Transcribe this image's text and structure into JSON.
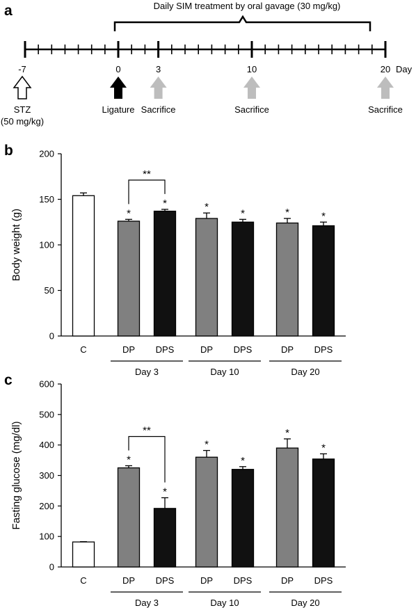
{
  "panel_a": {
    "label": "a",
    "treatment_title": "Daily SIM treatment by oral gavage (30 mg/kg)",
    "day_unit": "Day",
    "ticks": [
      "-7",
      "0",
      "3",
      "10",
      "20"
    ],
    "events": [
      {
        "day": -7,
        "label": "STZ",
        "sublabel": "(50 mg/kg)",
        "arrow": "outline"
      },
      {
        "day": 0,
        "label": "Ligature",
        "sublabel": "",
        "arrow": "black"
      },
      {
        "day": 3,
        "label": "Sacrifice",
        "sublabel": "",
        "arrow": "gray"
      },
      {
        "day": 10,
        "label": "Sacrifice",
        "sublabel": "",
        "arrow": "gray"
      },
      {
        "day": 20,
        "label": "Sacrifice",
        "sublabel": "",
        "arrow": "gray"
      }
    ]
  },
  "chart_data": [
    {
      "panel": "b",
      "type": "bar",
      "ylabel": "Body weight (g)",
      "ylim": [
        0,
        200
      ],
      "yticks": [
        0,
        50,
        100,
        150,
        200
      ],
      "categories": [
        "C",
        "DP",
        "DPS",
        "DP",
        "DPS",
        "DP",
        "DPS"
      ],
      "groups": [
        "Day 3",
        "Day 10",
        "Day 20"
      ],
      "values": [
        154,
        126,
        137,
        129,
        125,
        124,
        121
      ],
      "errors": [
        3,
        2,
        2,
        6,
        3,
        5,
        4
      ],
      "fills": [
        "#ffffff",
        "#808080",
        "#111111",
        "#808080",
        "#111111",
        "#808080",
        "#111111"
      ],
      "stars": [
        "",
        "*",
        "*",
        "*",
        "*",
        "*",
        "*"
      ],
      "bracket": {
        "from": 1,
        "to": 2,
        "label": "**"
      }
    },
    {
      "panel": "c",
      "type": "bar",
      "ylabel": "Fasting glucose (mg/dl)",
      "ylim": [
        0,
        600
      ],
      "yticks": [
        0,
        100,
        200,
        300,
        400,
        500,
        600
      ],
      "categories": [
        "C",
        "DP",
        "DPS",
        "DP",
        "DPS",
        "DP",
        "DPS"
      ],
      "groups": [
        "Day 3",
        "Day 10",
        "Day 20"
      ],
      "values": [
        82,
        325,
        192,
        360,
        320,
        390,
        354
      ],
      "errors": [
        1,
        7,
        35,
        22,
        9,
        30,
        17
      ],
      "fills": [
        "#ffffff",
        "#808080",
        "#111111",
        "#808080",
        "#111111",
        "#808080",
        "#111111"
      ],
      "stars": [
        "",
        "*",
        "*",
        "*",
        "*",
        "*",
        "*"
      ],
      "bracket": {
        "from": 1,
        "to": 2,
        "label": "**"
      }
    }
  ],
  "panel_labels": {
    "b": "b",
    "c": "c"
  }
}
